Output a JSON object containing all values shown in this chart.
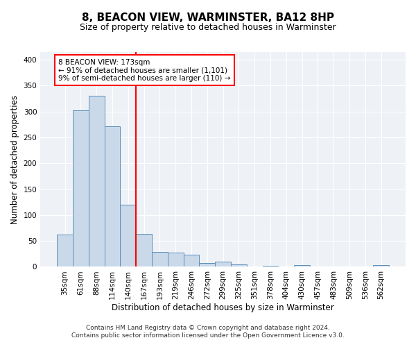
{
  "title": "8, BEACON VIEW, WARMINSTER, BA12 8HP",
  "subtitle": "Size of property relative to detached houses in Warminster",
  "xlabel": "Distribution of detached houses by size in Warminster",
  "ylabel": "Number of detached properties",
  "categories": [
    "35sqm",
    "61sqm",
    "88sqm",
    "114sqm",
    "140sqm",
    "167sqm",
    "193sqm",
    "219sqm",
    "246sqm",
    "272sqm",
    "299sqm",
    "325sqm",
    "351sqm",
    "378sqm",
    "404sqm",
    "430sqm",
    "457sqm",
    "483sqm",
    "509sqm",
    "536sqm",
    "562sqm"
  ],
  "values": [
    62,
    302,
    330,
    272,
    120,
    63,
    29,
    27,
    24,
    7,
    10,
    5,
    0,
    2,
    0,
    3,
    0,
    0,
    0,
    0,
    3
  ],
  "bar_color": "#c9d9ea",
  "bar_edge_color": "#5b8db8",
  "highlight_line_color": "red",
  "annotation_text": "8 BEACON VIEW: 173sqm\n← 91% of detached houses are smaller (1,101)\n9% of semi-detached houses are larger (110) →",
  "annotation_box_color": "white",
  "annotation_box_edge_color": "red",
  "ylim": [
    0,
    415
  ],
  "yticks": [
    0,
    50,
    100,
    150,
    200,
    250,
    300,
    350,
    400
  ],
  "footnote": "Contains HM Land Registry data © Crown copyright and database right 2024.\nContains public sector information licensed under the Open Government Licence v3.0.",
  "background_color": "#eef2f7",
  "grid_color": "#ffffff",
  "title_fontsize": 11,
  "subtitle_fontsize": 9,
  "tick_fontsize": 7.5,
  "label_fontsize": 8.5,
  "footnote_fontsize": 6.5,
  "annotation_fontsize": 7.5
}
